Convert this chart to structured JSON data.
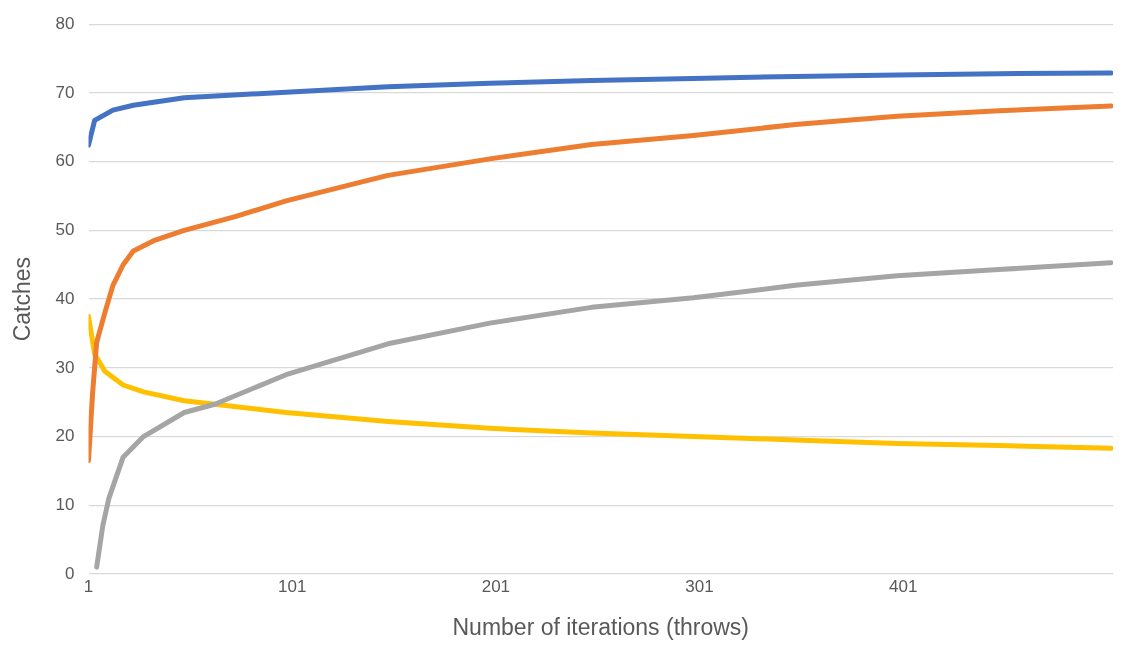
{
  "chart_data": {
    "type": "line",
    "xlabel": "Number of iterations (throws)",
    "ylabel": "Catches",
    "xlim": [
      1,
      504
    ],
    "xticks": [
      1,
      101,
      201,
      301,
      401
    ],
    "ylim": [
      0,
      80
    ],
    "yticks": [
      0,
      10,
      20,
      30,
      40,
      50,
      60,
      70,
      80
    ],
    "grid": "y",
    "legend": false,
    "marker": "none",
    "line_style": "solid",
    "series": [
      {
        "color": "#4472c4",
        "x": [
          1,
          4,
          13,
          23,
          48,
          98,
          148,
          198,
          248,
          298,
          348,
          398,
          448,
          503
        ],
        "values": [
          62.4,
          66,
          67.5,
          68.2,
          69.3,
          70.1,
          70.9,
          71.4,
          71.8,
          72.1,
          72.4,
          72.6,
          72.8,
          72.9
        ]
      },
      {
        "color": "#ed7d31",
        "x": [
          1,
          3,
          5,
          9,
          13,
          18,
          23,
          33,
          48,
          73,
          98,
          148,
          198,
          248,
          298,
          348,
          398,
          448,
          503
        ],
        "values": [
          16.5,
          26.3,
          33.7,
          38,
          42,
          45,
          47,
          48.5,
          50,
          52,
          54.3,
          58,
          60.4,
          62.5,
          63.8,
          65.4,
          66.6,
          67.4,
          68.1
        ]
      },
      {
        "color": "#a5a5a5",
        "x": [
          5,
          8,
          11,
          18,
          28,
          48,
          63,
          98,
          148,
          198,
          248,
          298,
          348,
          398,
          448,
          503
        ],
        "values": [
          1,
          7,
          11,
          17,
          20,
          23.5,
          24.7,
          29,
          33.5,
          36.5,
          38.8,
          40.2,
          42,
          43.4,
          44.3,
          45.3
        ]
      },
      {
        "color": "#ffc000",
        "x": [
          1,
          4,
          9,
          18,
          28,
          48,
          63,
          98,
          148,
          198,
          248,
          298,
          348,
          398,
          448,
          503
        ],
        "values": [
          37.5,
          32,
          29.5,
          27.5,
          26.5,
          25.2,
          24.7,
          23.5,
          22.2,
          21.2,
          20.5,
          20,
          19.5,
          19,
          18.7,
          18.3
        ]
      }
    ]
  }
}
